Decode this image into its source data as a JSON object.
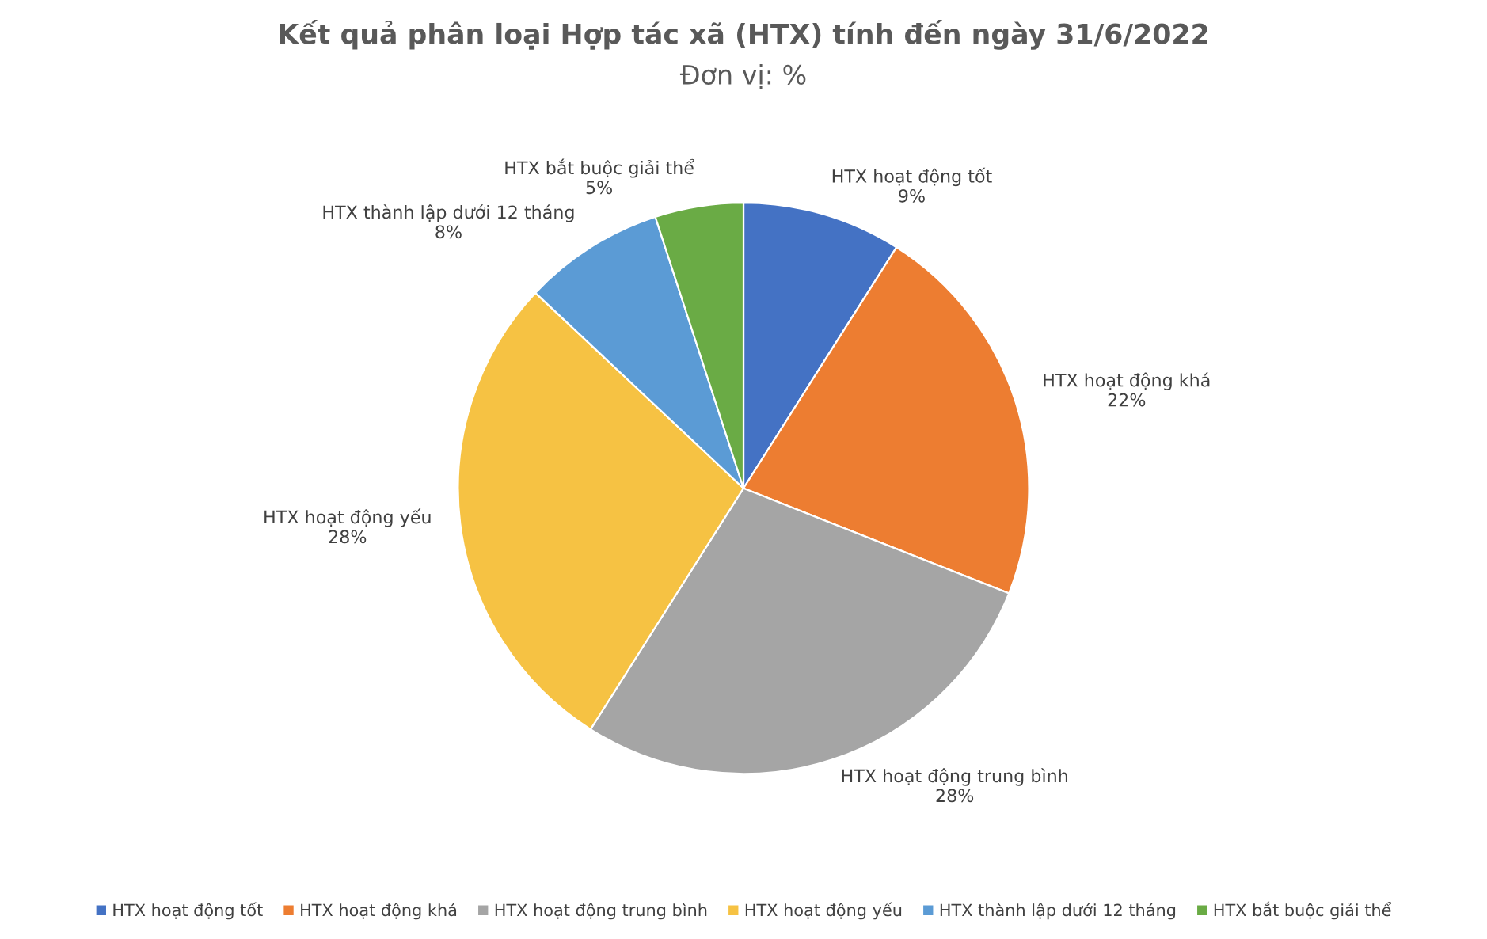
{
  "chart_data": {
    "type": "pie",
    "title": "Kết quả phân loại Hợp tác xã (HTX) tính đến ngày 31/6/2022",
    "subtitle": "Đơn vị: %",
    "categories": [
      "HTX hoạt động tốt",
      "HTX hoạt động khá",
      "HTX hoạt động trung bình",
      "HTX hoạt động yếu",
      "HTX thành lập dưới 12 tháng",
      "HTX bắt buộc giải thể"
    ],
    "values": [
      9,
      22,
      28,
      28,
      8,
      5
    ],
    "colors": [
      "#4472c4",
      "#ed7d31",
      "#a5a5a5",
      "#f6c243",
      "#5b9bd5",
      "#6aab45"
    ],
    "value_labels": [
      "9%",
      "22%",
      "28%",
      "28%",
      "8%",
      "5%"
    ],
    "legend": "bottom"
  }
}
